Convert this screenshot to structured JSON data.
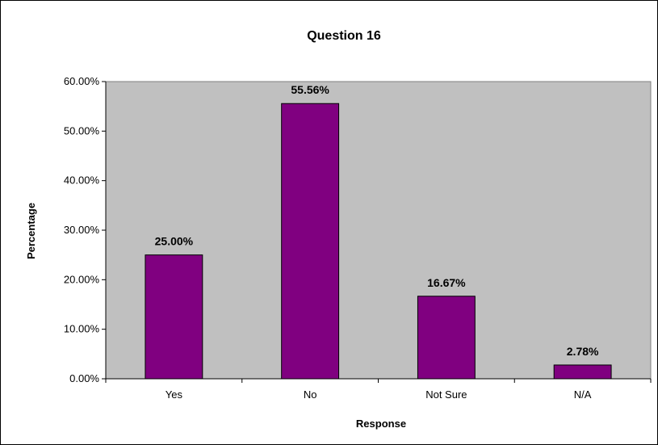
{
  "chart_data": {
    "type": "bar",
    "title": "Question 16",
    "xlabel": "Response",
    "ylabel": "Percentage",
    "categories": [
      "Yes",
      "No",
      "Not Sure",
      "N/A"
    ],
    "values": [
      25.0,
      55.56,
      16.67,
      2.78
    ],
    "data_labels": [
      "25.00%",
      "55.56%",
      "16.67%",
      "2.78%"
    ],
    "ylim": [
      0,
      60
    ],
    "yticks": [
      0,
      10,
      20,
      30,
      40,
      50,
      60
    ],
    "ytick_labels": [
      "0.00%",
      "10.00%",
      "20.00%",
      "30.00%",
      "40.00%",
      "50.00%",
      "60.00%"
    ],
    "grid": false,
    "legend": "none",
    "colors": {
      "bar_fill": "#800080",
      "bar_stroke": "#000000",
      "plot_background": "#C0C0C0",
      "gridline": "#000000"
    }
  }
}
